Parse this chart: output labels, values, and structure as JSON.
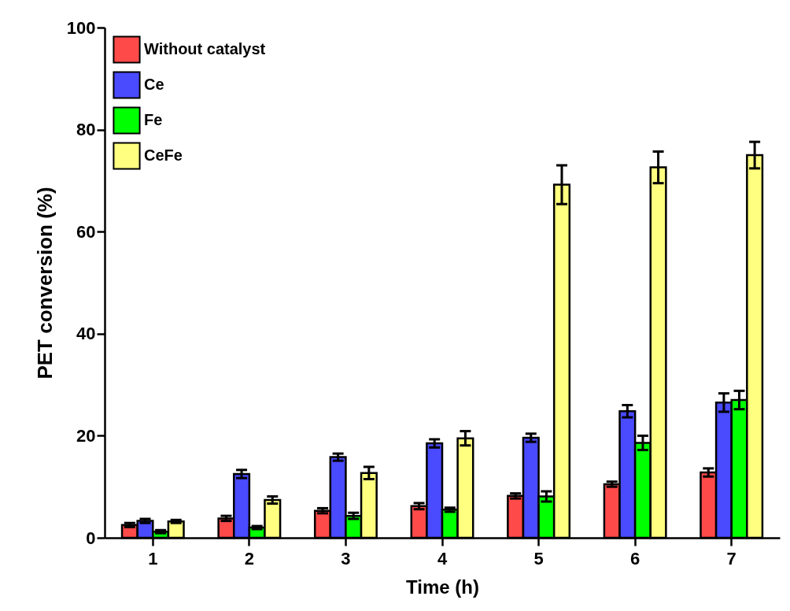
{
  "chart_data": {
    "type": "bar",
    "xlabel": "Time (h)",
    "ylabel": "PET conversion (%)",
    "categories": [
      "1",
      "2",
      "3",
      "4",
      "5",
      "6",
      "7"
    ],
    "series": [
      {
        "name": "Without catalyst",
        "color": "#ff4a4a",
        "values": [
          2.5,
          3.8,
          5.3,
          6.2,
          8.2,
          10.5,
          12.8
        ],
        "errors": [
          0.4,
          0.5,
          0.5,
          0.6,
          0.5,
          0.5,
          0.8
        ]
      },
      {
        "name": "Ce",
        "color": "#4a4aff",
        "values": [
          3.3,
          12.5,
          15.8,
          18.5,
          19.6,
          24.8,
          26.5
        ],
        "errors": [
          0.4,
          0.8,
          0.7,
          0.8,
          0.8,
          1.2,
          1.8
        ]
      },
      {
        "name": "Fe",
        "color": "#00ff00",
        "values": [
          1.2,
          2.0,
          4.3,
          5.5,
          8.1,
          18.6,
          27.0
        ],
        "errors": [
          0.3,
          0.3,
          0.6,
          0.4,
          1.0,
          1.4,
          1.8
        ]
      },
      {
        "name": "CeFe",
        "color": "#ffff80",
        "values": [
          3.2,
          7.4,
          12.7,
          19.5,
          69.2,
          72.6,
          75.0
        ],
        "errors": [
          0.3,
          0.7,
          1.2,
          1.4,
          3.8,
          3.1,
          2.6
        ]
      }
    ],
    "ylim": [
      0,
      100
    ],
    "yticks": [
      0,
      20,
      40,
      60,
      80,
      100
    ],
    "grid": false,
    "legend": "top left"
  }
}
